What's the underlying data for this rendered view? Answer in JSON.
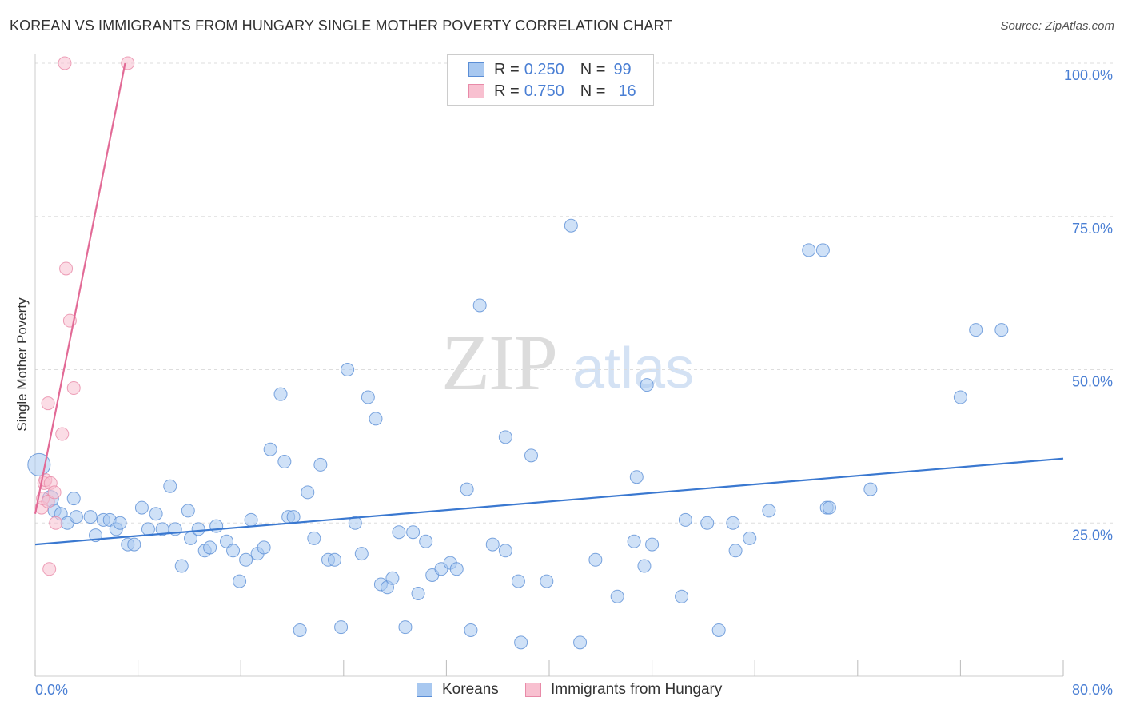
{
  "title": "KOREAN VS IMMIGRANTS FROM HUNGARY SINGLE MOTHER POVERTY CORRELATION CHART",
  "source": "Source: ZipAtlas.com",
  "watermark": {
    "zip": "ZIP",
    "atlas": "atlas"
  },
  "legend_top": {
    "row1": {
      "r_label": "R =",
      "r_value": "0.250",
      "n_label": "N =",
      "n_value": "99"
    },
    "row2": {
      "r_label": "R =",
      "r_value": "0.750",
      "n_label": "N =",
      "n_value": "16"
    }
  },
  "legend_bottom": {
    "koreans": "Koreans",
    "hungary": "Immigrants from Hungary"
  },
  "colors": {
    "koreans_fill": "#a8c8f0",
    "koreans_stroke": "#5b8ed6",
    "koreans_line": "#3a78d0",
    "hungary_fill": "#f8c0d0",
    "hungary_stroke": "#e88aa8",
    "hungary_line": "#e26a96",
    "axis_label": "#4a7fd4",
    "grid": "#dddddd"
  },
  "chart_data": {
    "type": "scatter",
    "title": "KOREAN VS IMMIGRANTS FROM HUNGARY SINGLE MOTHER POVERTY CORRELATION CHART",
    "xlabel": "",
    "ylabel": "Single Mother Poverty",
    "xlim": [
      0,
      80
    ],
    "ylim": [
      0,
      100
    ],
    "x_tick_labels": {
      "min": "0.0%",
      "max": "80.0%"
    },
    "y_ticks": [
      {
        "value": 25,
        "label": "25.0%"
      },
      {
        "value": 50,
        "label": "50.0%"
      },
      {
        "value": 75,
        "label": "75.0%"
      },
      {
        "value": 100,
        "label": "100.0%"
      }
    ],
    "x_minor_ticks": [
      0,
      8,
      16,
      24,
      32,
      40,
      48,
      56,
      64,
      72,
      80
    ],
    "series": [
      {
        "name": "Koreans",
        "r": 0.25,
        "n": 99,
        "trend": {
          "x0": 0,
          "y0": 21.5,
          "x1": 80,
          "y1": 35.5
        },
        "points": [
          [
            0.3,
            34.5,
            14
          ],
          [
            1.2,
            29,
            10
          ],
          [
            1.5,
            27,
            8
          ],
          [
            2.0,
            26.5,
            8
          ],
          [
            2.5,
            25,
            8
          ],
          [
            3.0,
            29,
            8
          ],
          [
            3.2,
            26,
            8
          ],
          [
            4.3,
            26,
            8
          ],
          [
            4.7,
            23,
            8
          ],
          [
            5.3,
            25.5,
            8
          ],
          [
            5.8,
            25.5,
            8
          ],
          [
            6.3,
            24,
            8
          ],
          [
            6.6,
            25,
            8
          ],
          [
            7.2,
            21.5,
            8
          ],
          [
            7.7,
            21.5,
            8
          ],
          [
            8.3,
            27.5,
            8
          ],
          [
            8.8,
            24,
            8
          ],
          [
            9.4,
            26.5,
            8
          ],
          [
            9.9,
            24,
            8
          ],
          [
            10.5,
            31,
            8
          ],
          [
            10.9,
            24,
            8
          ],
          [
            11.4,
            18,
            8
          ],
          [
            11.9,
            27,
            8
          ],
          [
            12.1,
            22.5,
            8
          ],
          [
            12.7,
            24,
            8
          ],
          [
            13.2,
            20.5,
            8
          ],
          [
            13.6,
            21,
            8
          ],
          [
            14.1,
            24.5,
            8
          ],
          [
            14.9,
            22,
            8
          ],
          [
            15.4,
            20.5,
            8
          ],
          [
            15.9,
            15.5,
            8
          ],
          [
            16.4,
            19,
            8
          ],
          [
            16.8,
            25.5,
            8
          ],
          [
            17.3,
            20,
            8
          ],
          [
            17.8,
            21,
            8
          ],
          [
            18.3,
            37,
            8
          ],
          [
            19.1,
            46,
            8
          ],
          [
            19.4,
            35,
            8
          ],
          [
            19.7,
            26,
            8
          ],
          [
            20.1,
            26,
            8
          ],
          [
            20.6,
            7.5,
            8
          ],
          [
            21.2,
            30,
            8
          ],
          [
            21.7,
            22.5,
            8
          ],
          [
            22.2,
            34.5,
            8
          ],
          [
            22.8,
            19,
            8
          ],
          [
            23.3,
            19,
            8
          ],
          [
            23.8,
            8,
            8
          ],
          [
            24.3,
            50,
            8
          ],
          [
            24.9,
            25,
            8
          ],
          [
            25.4,
            20,
            8
          ],
          [
            25.9,
            45.5,
            8
          ],
          [
            26.5,
            42,
            8
          ],
          [
            26.9,
            15,
            8
          ],
          [
            27.4,
            14.5,
            8
          ],
          [
            27.8,
            16,
            8
          ],
          [
            28.3,
            23.5,
            8
          ],
          [
            28.8,
            8,
            8
          ],
          [
            29.4,
            23.5,
            8
          ],
          [
            29.8,
            13.5,
            8
          ],
          [
            30.4,
            22,
            8
          ],
          [
            30.9,
            16.5,
            8
          ],
          [
            31.6,
            17.5,
            8
          ],
          [
            32.3,
            18.5,
            8
          ],
          [
            32.8,
            17.5,
            8
          ],
          [
            33.6,
            30.5,
            8
          ],
          [
            33.9,
            7.5,
            8
          ],
          [
            34.6,
            60.5,
            8
          ],
          [
            35.6,
            21.5,
            8
          ],
          [
            36.6,
            20.5,
            8
          ],
          [
            36.6,
            39,
            8
          ],
          [
            37.6,
            15.5,
            8
          ],
          [
            37.8,
            5.5,
            8
          ],
          [
            38.6,
            36,
            8
          ],
          [
            39.8,
            15.5,
            8
          ],
          [
            41.7,
            73.5,
            8
          ],
          [
            42.4,
            5.5,
            8
          ],
          [
            43.6,
            19,
            8
          ],
          [
            45.3,
            13,
            8
          ],
          [
            46.6,
            22,
            8
          ],
          [
            46.8,
            32.5,
            8
          ],
          [
            47.4,
            18,
            8
          ],
          [
            47.6,
            47.5,
            8
          ],
          [
            48.0,
            21.5,
            8
          ],
          [
            50.3,
            13,
            8
          ],
          [
            50.6,
            25.5,
            8
          ],
          [
            52.3,
            25,
            8
          ],
          [
            53.2,
            7.5,
            8
          ],
          [
            54.3,
            25,
            8
          ],
          [
            54.5,
            20.5,
            8
          ],
          [
            55.6,
            22.5,
            8
          ],
          [
            57.1,
            27,
            8
          ],
          [
            60.2,
            69.5,
            8
          ],
          [
            61.3,
            69.5,
            8
          ],
          [
            61.6,
            27.5,
            8
          ],
          [
            61.8,
            27.5,
            8
          ],
          [
            65.0,
            30.5,
            8
          ],
          [
            72.0,
            45.5,
            8
          ],
          [
            73.2,
            56.5,
            8
          ],
          [
            75.2,
            56.5,
            8
          ]
        ]
      },
      {
        "name": "Immigrants from Hungary",
        "r": 0.75,
        "n": 16,
        "trend": {
          "x0": 0,
          "y0": 26.5,
          "x1": 7.0,
          "y1": 100
        },
        "points": [
          [
            0.5,
            27.5,
            8
          ],
          [
            0.6,
            29,
            8
          ],
          [
            0.7,
            31.5,
            8
          ],
          [
            0.8,
            32,
            8
          ],
          [
            1.0,
            28.5,
            8
          ],
          [
            1.2,
            31.5,
            8
          ],
          [
            1.5,
            30,
            8
          ],
          [
            1.6,
            25,
            8
          ],
          [
            1.1,
            17.5,
            8
          ],
          [
            1.0,
            44.5,
            8
          ],
          [
            2.1,
            39.5,
            8
          ],
          [
            2.3,
            100,
            8
          ],
          [
            2.4,
            66.5,
            8
          ],
          [
            2.7,
            58,
            8
          ],
          [
            3.0,
            47,
            8
          ],
          [
            7.2,
            100,
            8
          ]
        ]
      }
    ]
  }
}
